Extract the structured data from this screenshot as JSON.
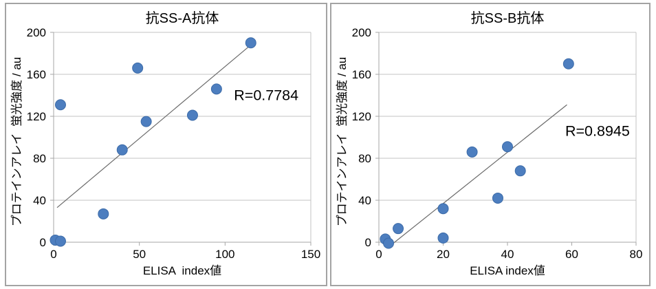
{
  "colors": {
    "marker_fill": "#4d7ebf",
    "marker_edge": "#3c6ba8",
    "trendline": "#6b6b6b",
    "gridline": "#c3c3c3",
    "axis_line": "#a6a6a6",
    "panel_border": "#a3a3a3",
    "text": "#000000"
  },
  "chart_data": [
    {
      "type": "scatter",
      "title": "抗SS-A抗体",
      "xlabel": "ELISA  index値",
      "ylabel": "プロテインアレイ  蛍光強度 / au",
      "xlim": [
        0,
        150
      ],
      "ylim": [
        0,
        200
      ],
      "xticks": [
        0,
        50,
        100,
        150
      ],
      "yticks": [
        0,
        40,
        80,
        120,
        160,
        200
      ],
      "grid": "horizontal",
      "legend": "none",
      "annotation": {
        "text": "R=0.7784",
        "x": 124,
        "y": 140
      },
      "points": [
        [
          1,
          2
        ],
        [
          4,
          1
        ],
        [
          4,
          131
        ],
        [
          29,
          27
        ],
        [
          40,
          88
        ],
        [
          49,
          166
        ],
        [
          54,
          115
        ],
        [
          81,
          121
        ],
        [
          95,
          146
        ],
        [
          115,
          190
        ]
      ],
      "trendline": {
        "x1": 2,
        "y1": 33,
        "x2": 115,
        "y2": 188
      }
    },
    {
      "type": "scatter",
      "title": "抗SS-B抗体",
      "xlabel": "ELISA index値",
      "ylabel": "プロテインアレイ  蛍光強度 / au",
      "xlim": [
        0,
        80
      ],
      "ylim": [
        0,
        200
      ],
      "xticks": [
        0,
        20,
        40,
        60,
        80
      ],
      "yticks": [
        0,
        40,
        80,
        120,
        160,
        200
      ],
      "grid": "horizontal",
      "legend": "none",
      "annotation": {
        "text": "R=0.8945",
        "x": 68,
        "y": 106
      },
      "points": [
        [
          2,
          3
        ],
        [
          3,
          -1
        ],
        [
          6,
          13
        ],
        [
          20,
          32
        ],
        [
          20,
          4
        ],
        [
          29,
          86
        ],
        [
          37,
          42
        ],
        [
          40,
          91
        ],
        [
          44,
          68
        ],
        [
          59,
          170
        ]
      ],
      "trendline": {
        "x1": 4.5,
        "y1": -1,
        "x2": 58.5,
        "y2": 131
      }
    }
  ]
}
